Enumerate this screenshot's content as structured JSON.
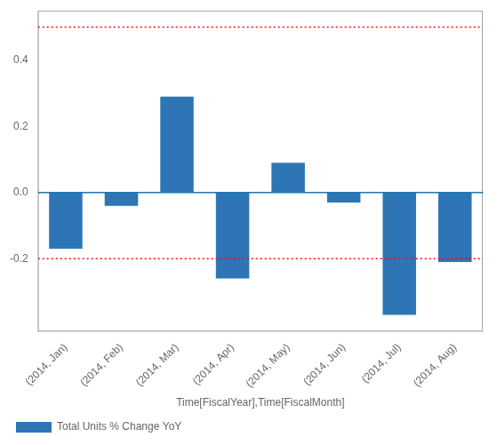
{
  "chart_data": {
    "type": "bar",
    "categories": [
      "(2014, Jan)",
      "(2014, Feb)",
      "(2014, Mar)",
      "(2014, Apr)",
      "(2014, May)",
      "(2014, Jun)",
      "(2014, Jul)",
      "(2014, Aug)"
    ],
    "series": [
      {
        "name": "Total Units % Change YoY",
        "color": "#2e75b6",
        "values": [
          -0.17,
          -0.04,
          0.29,
          -0.26,
          0.09,
          -0.03,
          -0.37,
          -0.21
        ]
      }
    ],
    "x_label": "Time[FiscalYear],Time[FiscalMonth]",
    "ylim": [
      -0.42,
      0.55
    ],
    "yticks": [
      -0.2,
      {
        "value": 0,
        "label": "0.0"
      },
      0.2,
      0.4
    ],
    "reference_lines": [
      {
        "value": 0.5,
        "color": "red",
        "line_style": "dotted"
      },
      {
        "value": -0.2,
        "color": "red",
        "line_style": "dotted"
      },
      {
        "value": 0,
        "color": "#1f77b4",
        "line_style": "solid"
      }
    ],
    "grid": false,
    "legend": "lower left"
  }
}
